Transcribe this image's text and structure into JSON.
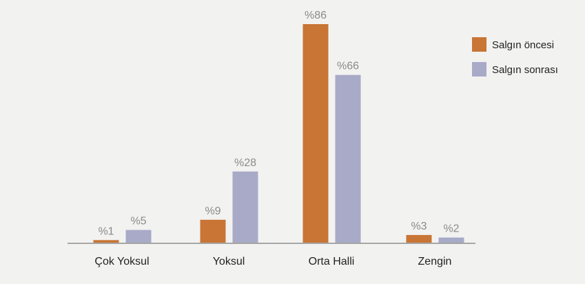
{
  "chart_data": {
    "type": "bar",
    "categories": [
      "Çok Yoksul",
      "Yoksul",
      "Orta Halli",
      "Zengin"
    ],
    "series": [
      {
        "name": "Salgın öncesi",
        "color": "#c87535",
        "values": [
          1,
          9,
          86,
          3
        ],
        "labels": [
          "%1",
          "%9",
          "%86",
          "%3"
        ]
      },
      {
        "name": "Salgın sonrası",
        "color": "#a9aac8",
        "values": [
          5,
          28,
          66,
          2
        ],
        "labels": [
          "%5",
          "%28",
          "%66",
          "%2"
        ]
      }
    ],
    "ylim": [
      0,
      86
    ],
    "grid": false,
    "legend_position": "top-right"
  }
}
